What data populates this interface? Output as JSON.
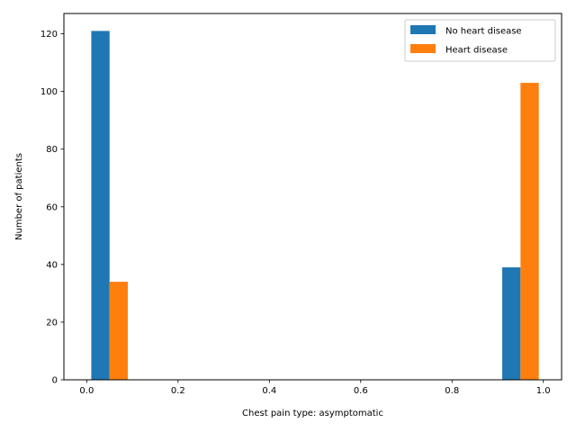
{
  "chart_data": {
    "type": "bar",
    "title": "",
    "xlabel": "Chest pain type: asymptomatic",
    "ylabel": "Number of patients",
    "xlim": [
      -0.05,
      1.04
    ],
    "ylim": [
      0,
      127.05
    ],
    "xticks": [
      "0.0",
      "0.2",
      "0.4",
      "0.6",
      "0.8",
      "1.0"
    ],
    "yticks": [
      "0",
      "20",
      "40",
      "60",
      "80",
      "100",
      "120"
    ],
    "grid": false,
    "legend_position": "top-right",
    "series": [
      {
        "name": "No heart disease",
        "color": "#1f77b4",
        "bars": [
          {
            "x0": 0.01,
            "x1": 0.05,
            "value": 121
          },
          {
            "x0": 0.91,
            "x1": 0.95,
            "value": 39
          }
        ]
      },
      {
        "name": "Heart disease",
        "color": "#ff7f0e",
        "bars": [
          {
            "x0": 0.05,
            "x1": 0.09,
            "value": 34
          },
          {
            "x0": 0.95,
            "x1": 0.99,
            "value": 103
          }
        ]
      }
    ]
  }
}
